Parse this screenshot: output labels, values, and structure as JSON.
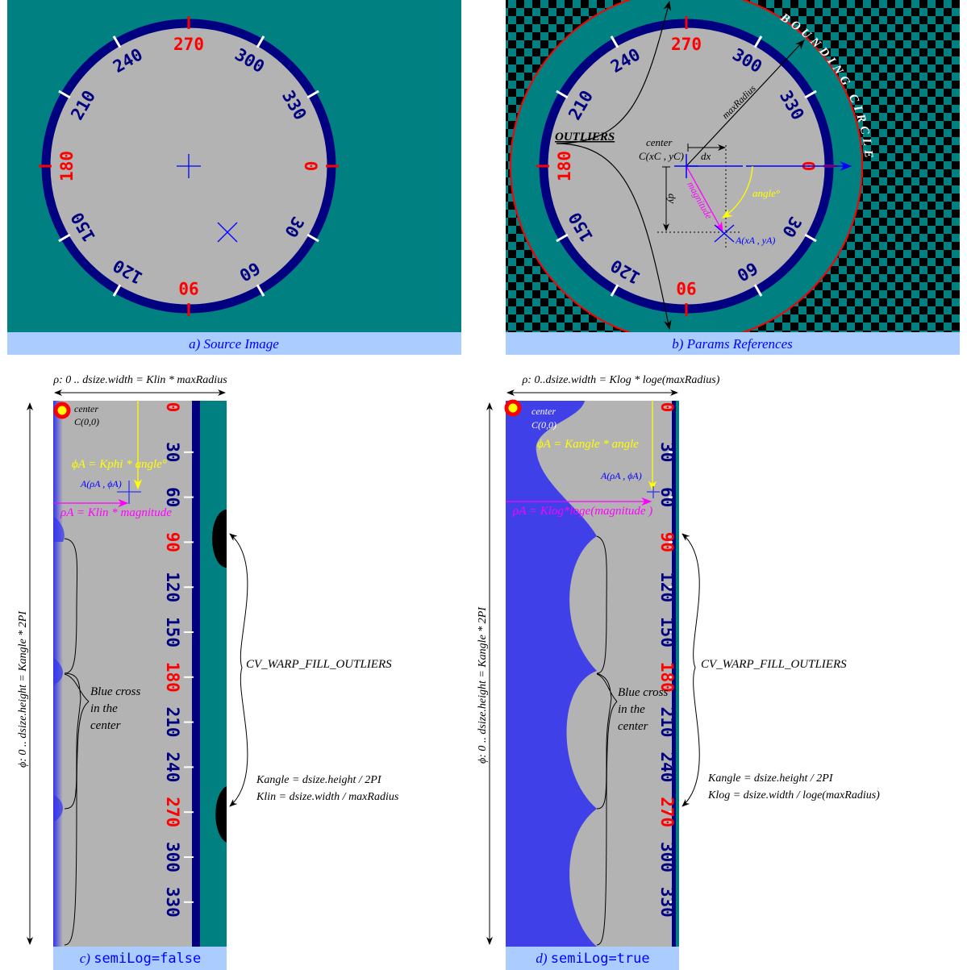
{
  "colors": {
    "teal": "#008080",
    "navy": "#000080",
    "gray": "#b3b3b3",
    "red": "#ff0000",
    "blue": "#0000ff",
    "yellow": "#ffff00",
    "magenta": "#ff00ff",
    "caption_bg": "#aaccff",
    "caption_text": "#0000ff",
    "outlier_blue": "#3333ee"
  },
  "dial": {
    "labels": [
      "0",
      "30",
      "60",
      "90",
      "120",
      "150",
      "180",
      "210",
      "240",
      "270",
      "300",
      "330"
    ],
    "cardinal": [
      "0",
      "90",
      "180",
      "270"
    ]
  },
  "panel_a": {
    "caption": "a) Source Image"
  },
  "panel_b": {
    "caption": "b) Params References",
    "outliers": "OUTLIERS",
    "bounding": "BOUNDING CIRCLE",
    "max_radius": "maxRadius",
    "center": "center",
    "center_coord": "C(xC , yC)",
    "dx": "dx",
    "dy": "dy",
    "magnitude": "magnitude",
    "angle": "angle°",
    "point_a": "A(xA , yA)"
  },
  "panel_c": {
    "caption_prefix": "c) ",
    "caption_code": "semiLog=false",
    "width_label": "ρ: 0 .. dsize.width = Klin * maxRadius",
    "height_label": "ϕ: 0 .. dsize.height = Kangle * 2PI",
    "center": "center",
    "center_coord": "C(0,0)",
    "phi_formula": "ϕA = Kphi * angle°",
    "point_a": "A(ρA , ϕA)",
    "rho_formula": "ρA = Klin * magnitude",
    "blue_cross_1": "Blue cross",
    "blue_cross_2": "in the",
    "blue_cross_3": "center",
    "fill_outliers": "CV_WARP_FILL_OUTLIERS",
    "kangle": "Kangle = dsize.height / 2PI",
    "kfactor": "Klin = dsize.width / maxRadius"
  },
  "panel_d": {
    "caption_prefix": "d) ",
    "caption_code": "semiLog=true",
    "width_label": "ρ: 0..dsize.width = Klog * loge(maxRadius)",
    "height_label": "ϕ: 0 .. dsize.height = Kangle * 2PI",
    "center": "center",
    "center_coord": "C(0,0)",
    "phi_formula": "ϕA = Kangle * angle",
    "point_a": "A(ρA , ϕA)",
    "rho_formula": "ρA = Klog*loge(magnitude )",
    "blue_cross_1": "Blue cross",
    "blue_cross_2": "in the",
    "blue_cross_3": "center",
    "fill_outliers": "CV_WARP_FILL_OUTLIERS",
    "kangle": "Kangle = dsize.height / 2PI",
    "kfactor": "Klog = dsize.width / loge(maxRadius)"
  }
}
